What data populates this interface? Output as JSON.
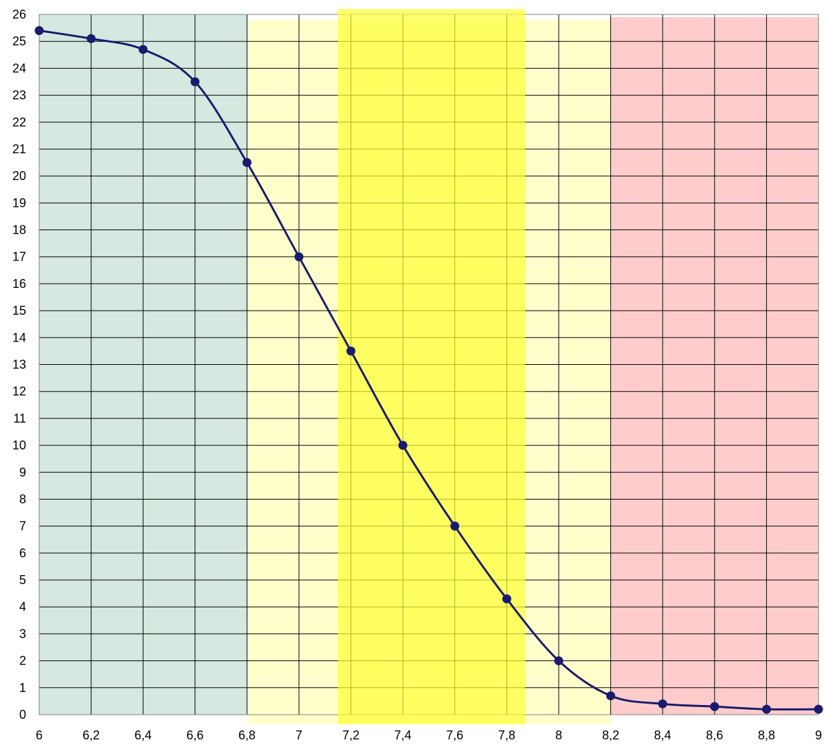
{
  "chart_data": {
    "type": "line",
    "title": "",
    "xlabel": "",
    "ylabel": "",
    "xlim": [
      6,
      9
    ],
    "ylim": [
      0,
      26
    ],
    "grid": true,
    "x_ticks": [
      {
        "value": 6.0,
        "label": "6"
      },
      {
        "value": 6.2,
        "label": "6,2"
      },
      {
        "value": 6.4,
        "label": "6,4"
      },
      {
        "value": 6.6,
        "label": "6,6"
      },
      {
        "value": 6.8,
        "label": "6,8"
      },
      {
        "value": 7.0,
        "label": "7"
      },
      {
        "value": 7.2,
        "label": "7,2"
      },
      {
        "value": 7.4,
        "label": "7,4"
      },
      {
        "value": 7.6,
        "label": "7,6"
      },
      {
        "value": 7.8,
        "label": "7,8"
      },
      {
        "value": 8.0,
        "label": "8"
      },
      {
        "value": 8.2,
        "label": "8,2"
      },
      {
        "value": 8.4,
        "label": "8,4"
      },
      {
        "value": 8.6,
        "label": "8,6"
      },
      {
        "value": 8.8,
        "label": "8,8"
      },
      {
        "value": 9.0,
        "label": "9"
      }
    ],
    "y_ticks": [
      0,
      1,
      2,
      3,
      4,
      5,
      6,
      7,
      8,
      9,
      10,
      11,
      12,
      13,
      14,
      15,
      16,
      17,
      18,
      19,
      20,
      21,
      22,
      23,
      24,
      25,
      26
    ],
    "series": [
      {
        "color": "#1a1a6e",
        "x": [
          6.0,
          6.2,
          6.4,
          6.6,
          6.8,
          7.0,
          7.2,
          7.4,
          7.6,
          7.8,
          8.0,
          8.2,
          8.4,
          8.6,
          8.8,
          9.0
        ],
        "y": [
          25.4,
          25.1,
          24.7,
          23.5,
          20.5,
          17.0,
          13.5,
          10.0,
          7.0,
          4.3,
          2.0,
          0.7,
          0.4,
          0.3,
          0.2,
          0.2
        ]
      }
    ],
    "bands": [
      {
        "x0": 6.0,
        "x1": 6.8,
        "y1": 26.0,
        "color": "#d6e8df",
        "overlay": false
      },
      {
        "x0": 6.8,
        "x1": 8.2,
        "y1": 25.8,
        "color": "#ffffcc",
        "overlay": false
      },
      {
        "x0": 8.2,
        "x1": 9.0,
        "y1": 25.9,
        "color": "#ffcccc",
        "overlay": false
      },
      {
        "x0": 7.15,
        "x1": 7.87,
        "y1": 26.2,
        "color": "#ffff33",
        "overlay": true
      }
    ]
  }
}
